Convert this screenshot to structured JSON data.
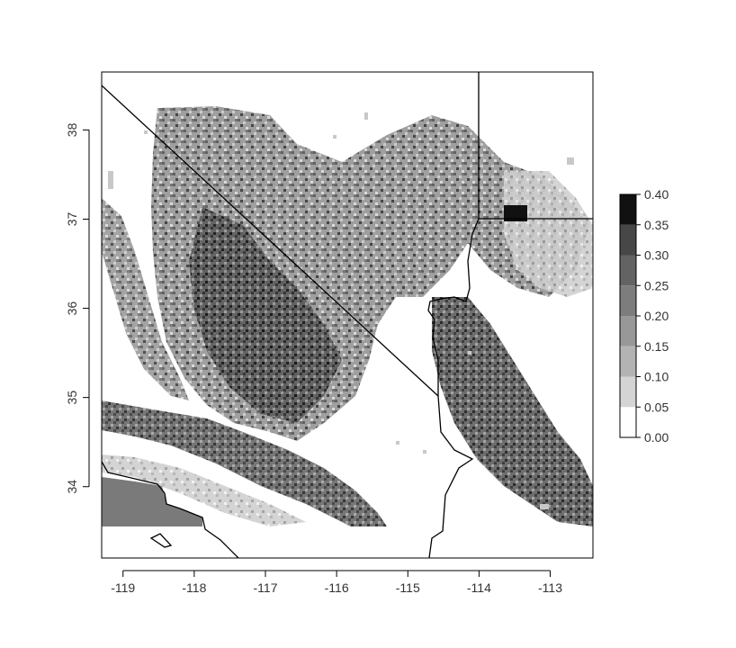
{
  "map": {
    "x_ticks": [
      "-119",
      "-118",
      "-117",
      "-116",
      "-115",
      "-114",
      "-113"
    ],
    "y_ticks": [
      "34",
      "35",
      "36",
      "37",
      "38"
    ],
    "lon_range": [
      -119.3,
      -112.4
    ],
    "lat_range": [
      33.2,
      38.65
    ],
    "colors": {
      "background": "#ffffff",
      "frame": "#000000",
      "boundary": "#000000"
    },
    "legend": {
      "labels": [
        "0.40",
        "0.35",
        "0.30",
        "0.25",
        "0.20",
        "0.15",
        "0.10",
        "0.05",
        "0.00"
      ],
      "class_colors": [
        "#ffffff",
        "#d4d4d4",
        "#b3b3b3",
        "#989898",
        "#7d7d7d",
        "#636363",
        "#474747",
        "#111111"
      ]
    }
  }
}
